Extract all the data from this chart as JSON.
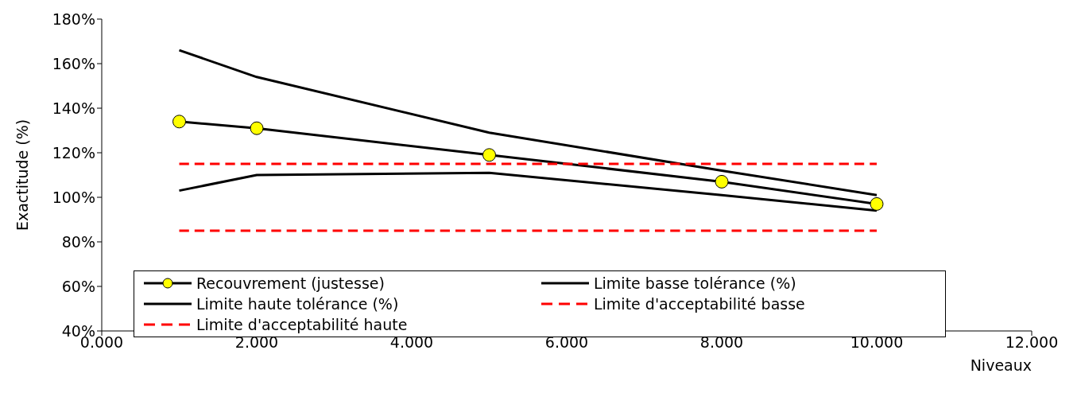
{
  "chart_data": {
    "type": "line",
    "xlabel": "Niveaux",
    "ylabel": "Exactitude (%)",
    "xlim": [
      0,
      12
    ],
    "xticks": [
      {
        "value": 0,
        "label": "0.000"
      },
      {
        "value": 2,
        "label": "2.000"
      },
      {
        "value": 4,
        "label": "4.000"
      },
      {
        "value": 6,
        "label": "6.000"
      },
      {
        "value": 8,
        "label": "8.000"
      },
      {
        "value": 10,
        "label": "10.000"
      },
      {
        "value": 12,
        "label": "12.000"
      }
    ],
    "ylim": [
      40,
      180
    ],
    "yticks": [
      {
        "value": 40,
        "label": "40%"
      },
      {
        "value": 60,
        "label": "60%"
      },
      {
        "value": 80,
        "label": "80%"
      },
      {
        "value": 100,
        "label": "100%"
      },
      {
        "value": 120,
        "label": "120%"
      },
      {
        "value": 140,
        "label": "140%"
      },
      {
        "value": 160,
        "label": "160%"
      },
      {
        "value": 180,
        "label": "180%"
      }
    ],
    "legend": "bottom",
    "series": [
      {
        "name": "Recouvrement (justesse)",
        "color": "#000000",
        "colors": [
          "#ffff00",
          "#ffff00",
          "#ffff00",
          "#ffff00",
          "#ffff00"
        ],
        "marker": "circle",
        "line_style": "solid",
        "x": [
          1,
          2,
          5,
          8,
          10
        ],
        "values": [
          134,
          131,
          119,
          107,
          97
        ]
      },
      {
        "name": "Limite basse tolérance (%)",
        "color": "#000000",
        "marker": "none",
        "line_style": "solid",
        "x": [
          1,
          2,
          5,
          8,
          10
        ],
        "values": [
          103,
          110,
          111,
          101,
          94
        ]
      },
      {
        "name": "Limite haute tolérance (%)",
        "color": "#000000",
        "marker": "none",
        "line_style": "solid",
        "x": [
          1,
          2,
          5,
          8,
          10
        ],
        "values": [
          166,
          154,
          129,
          112,
          101
        ]
      },
      {
        "name": "Limite d'acceptabilité basse",
        "color": "#ff0000",
        "marker": "none",
        "line_style": "dashed",
        "x": [
          1,
          10
        ],
        "values": [
          85,
          85
        ]
      },
      {
        "name": "Limite d'acceptabilité haute",
        "color": "#ff0000",
        "marker": "none",
        "line_style": "dashed",
        "x": [
          1,
          10
        ],
        "values": [
          115,
          115
        ]
      }
    ]
  }
}
